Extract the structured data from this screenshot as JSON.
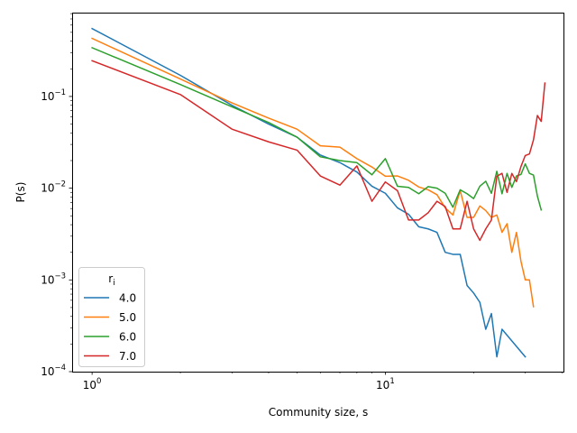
{
  "chart_data": {
    "type": "line",
    "title": "",
    "xlabel": "Community size, s",
    "ylabel": "P(s)",
    "xscale": "log",
    "yscale": "log",
    "xlim": [
      0.855,
      40.5
    ],
    "ylim": [
      0.0001,
      0.82
    ],
    "x_ticks": [
      {
        "value": 1,
        "base": "10",
        "exp": "0"
      },
      {
        "value": 10,
        "base": "10",
        "exp": "1"
      }
    ],
    "y_ticks": [
      {
        "value": 0.0001,
        "base": "10",
        "exp": "−4"
      },
      {
        "value": 0.001,
        "base": "10",
        "exp": "−3"
      },
      {
        "value": 0.01,
        "base": "10",
        "exp": "−2"
      },
      {
        "value": 0.1,
        "base": "10",
        "exp": "−1"
      }
    ],
    "grid": false,
    "legend": {
      "title_base": "r",
      "title_sub": "i",
      "placement": "lower-left"
    },
    "series": [
      {
        "name": "4.0",
        "color": "#1f77b4",
        "x": [
          1,
          2,
          3,
          4,
          5,
          6,
          7,
          8,
          9,
          10,
          11,
          12,
          13,
          14,
          15,
          16,
          17,
          18,
          19,
          20,
          21,
          22,
          23,
          24,
          25,
          30
        ],
        "y": [
          0.55,
          0.17,
          0.08,
          0.05,
          0.036,
          0.023,
          0.019,
          0.015,
          0.0105,
          0.0088,
          0.0061,
          0.0052,
          0.0038,
          0.0036,
          0.0033,
          0.002,
          0.0019,
          0.0019,
          0.00087,
          0.00072,
          0.00057,
          0.00029,
          0.00043,
          0.000145,
          0.00029,
          0.000145
        ]
      },
      {
        "name": "5.0",
        "color": "#ff7f0e",
        "x": [
          1,
          2,
          3,
          4,
          5,
          6,
          7,
          8,
          9,
          10,
          11,
          12,
          13,
          14,
          15,
          16,
          17,
          18,
          19,
          20,
          21,
          22,
          23,
          24,
          25,
          26,
          27,
          28,
          29,
          30,
          31,
          32
        ],
        "y": [
          0.43,
          0.155,
          0.085,
          0.058,
          0.044,
          0.029,
          0.028,
          0.021,
          0.017,
          0.0135,
          0.0136,
          0.0122,
          0.0103,
          0.0096,
          0.0085,
          0.0061,
          0.0051,
          0.0094,
          0.0048,
          0.0048,
          0.0064,
          0.0057,
          0.0048,
          0.0051,
          0.0033,
          0.0041,
          0.002,
          0.0033,
          0.0016,
          0.001,
          0.001,
          0.00051
        ]
      },
      {
        "name": "6.0",
        "color": "#2ca02c",
        "x": [
          1,
          2,
          3,
          4,
          5,
          6,
          7,
          8,
          9,
          10,
          11,
          12,
          13,
          14,
          15,
          16,
          17,
          18,
          19,
          20,
          21,
          22,
          23,
          24,
          25,
          26,
          27,
          28,
          29,
          30,
          31,
          32,
          33,
          34
        ],
        "y": [
          0.34,
          0.135,
          0.077,
          0.052,
          0.036,
          0.022,
          0.02,
          0.019,
          0.014,
          0.021,
          0.0105,
          0.0102,
          0.0087,
          0.0104,
          0.01,
          0.0088,
          0.0062,
          0.0096,
          0.0087,
          0.0077,
          0.0105,
          0.0119,
          0.0088,
          0.0153,
          0.0087,
          0.0145,
          0.0102,
          0.0136,
          0.0141,
          0.0184,
          0.0145,
          0.0139,
          0.0082,
          0.0058
        ]
      },
      {
        "name": "7.0",
        "color": "#d62728",
        "x": [
          1,
          2,
          3,
          4,
          5,
          6,
          7,
          8,
          9,
          10,
          11,
          12,
          13,
          14,
          15,
          16,
          17,
          18,
          19,
          20,
          21,
          22,
          23,
          24,
          25,
          26,
          27,
          28,
          29,
          30,
          31,
          32,
          33,
          34,
          35
        ],
        "y": [
          0.245,
          0.105,
          0.044,
          0.032,
          0.026,
          0.0136,
          0.0108,
          0.0175,
          0.0072,
          0.0117,
          0.0094,
          0.0045,
          0.0045,
          0.0054,
          0.0072,
          0.0063,
          0.0036,
          0.0036,
          0.0072,
          0.0036,
          0.0027,
          0.0036,
          0.0045,
          0.0135,
          0.0145,
          0.009,
          0.0145,
          0.0118,
          0.0172,
          0.0227,
          0.0236,
          0.0336,
          0.062,
          0.0535,
          0.14
        ]
      }
    ]
  }
}
